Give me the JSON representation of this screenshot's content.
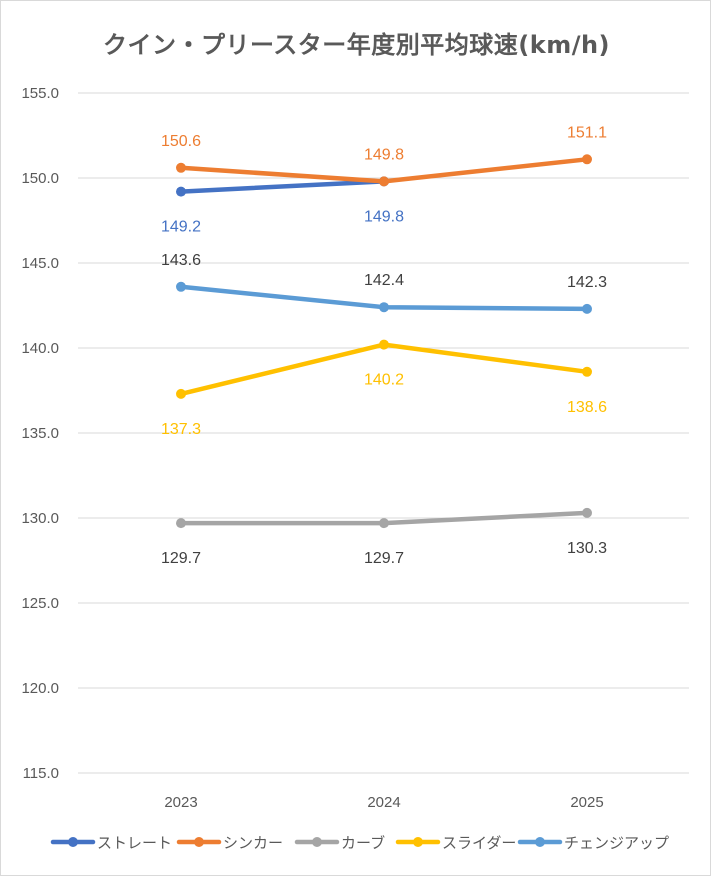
{
  "chart_data": {
    "type": "line",
    "title": "クイン・プリースター年度別平均球速(km/h)",
    "categories": [
      "2023",
      "2024",
      "2025"
    ],
    "ylim": [
      115.0,
      155.0
    ],
    "yticks": [
      "115.0",
      "120.0",
      "125.0",
      "130.0",
      "135.0",
      "140.0",
      "145.0",
      "150.0",
      "155.0"
    ],
    "grid": true,
    "legend_position": "bottom",
    "series": [
      {
        "name": "ストレート",
        "color": "#4472c4",
        "values": [
          149.2,
          149.8,
          null
        ],
        "labels": [
          "149.2",
          "149.8",
          null
        ],
        "label_side": "below"
      },
      {
        "name": "シンカー",
        "color": "#ed7d31",
        "values": [
          150.6,
          149.8,
          151.1
        ],
        "labels": [
          "150.6",
          "149.8",
          "151.1"
        ],
        "label_side": "above"
      },
      {
        "name": "カーブ",
        "color": "#a5a5a5",
        "values": [
          129.7,
          129.7,
          130.3
        ],
        "labels": [
          "129.7",
          "129.7",
          "130.3"
        ],
        "label_side": "below",
        "label_color": "#404040"
      },
      {
        "name": "スライダー",
        "color": "#ffc000",
        "values": [
          137.3,
          140.2,
          138.6
        ],
        "labels": [
          "137.3",
          "140.2",
          "138.6"
        ],
        "label_side": "below"
      },
      {
        "name": "チェンジアップ",
        "color": "#5b9bd5",
        "values": [
          143.6,
          142.4,
          142.3
        ],
        "labels": [
          "143.6",
          "142.4",
          "142.3"
        ],
        "label_side": "above",
        "label_color": "#404040"
      }
    ]
  }
}
